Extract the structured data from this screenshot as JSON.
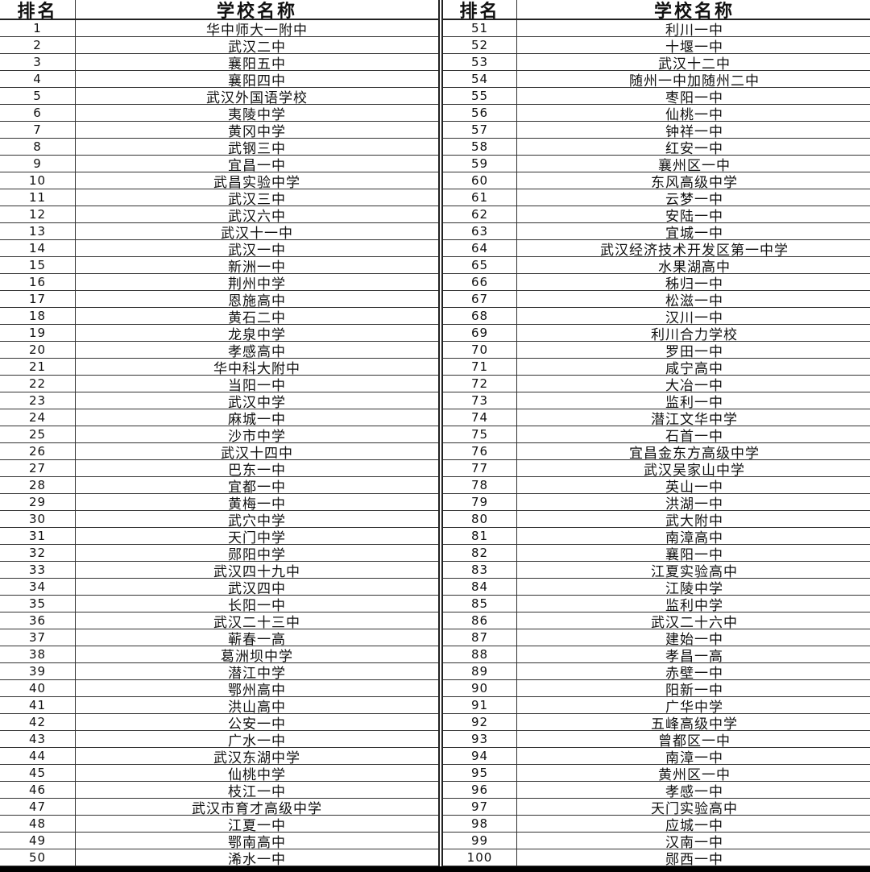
{
  "header": {
    "rank": "排名",
    "name": "学校名称"
  },
  "left": [
    {
      "rank": "1",
      "name": "华中师大一附中"
    },
    {
      "rank": "2",
      "name": "武汉二中"
    },
    {
      "rank": "3",
      "name": "襄阳五中"
    },
    {
      "rank": "4",
      "name": "襄阳四中"
    },
    {
      "rank": "5",
      "name": "武汉外国语学校"
    },
    {
      "rank": "6",
      "name": "夷陵中学"
    },
    {
      "rank": "7",
      "name": "黄冈中学"
    },
    {
      "rank": "8",
      "name": "武钢三中"
    },
    {
      "rank": "9",
      "name": "宜昌一中"
    },
    {
      "rank": "10",
      "name": "武昌实验中学"
    },
    {
      "rank": "11",
      "name": "武汉三中"
    },
    {
      "rank": "12",
      "name": "武汉六中"
    },
    {
      "rank": "13",
      "name": "武汉十一中"
    },
    {
      "rank": "14",
      "name": "武汉一中"
    },
    {
      "rank": "15",
      "name": "新洲一中"
    },
    {
      "rank": "16",
      "name": "荆州中学"
    },
    {
      "rank": "17",
      "name": "恩施高中"
    },
    {
      "rank": "18",
      "name": "黄石二中"
    },
    {
      "rank": "19",
      "name": "龙泉中学"
    },
    {
      "rank": "20",
      "name": "孝感高中"
    },
    {
      "rank": "21",
      "name": "华中科大附中"
    },
    {
      "rank": "22",
      "name": "当阳一中"
    },
    {
      "rank": "23",
      "name": "武汉中学"
    },
    {
      "rank": "24",
      "name": "麻城一中"
    },
    {
      "rank": "25",
      "name": "沙市中学"
    },
    {
      "rank": "26",
      "name": "武汉十四中"
    },
    {
      "rank": "27",
      "name": "巴东一中"
    },
    {
      "rank": "28",
      "name": "宜都一中"
    },
    {
      "rank": "29",
      "name": "黄梅一中"
    },
    {
      "rank": "30",
      "name": "武穴中学"
    },
    {
      "rank": "31",
      "name": "天门中学"
    },
    {
      "rank": "32",
      "name": "郧阳中学"
    },
    {
      "rank": "33",
      "name": "武汉四十九中"
    },
    {
      "rank": "34",
      "name": "武汉四中"
    },
    {
      "rank": "35",
      "name": "长阳一中"
    },
    {
      "rank": "36",
      "name": "武汉二十三中"
    },
    {
      "rank": "37",
      "name": "蕲春一高"
    },
    {
      "rank": "38",
      "name": "葛洲坝中学"
    },
    {
      "rank": "39",
      "name": "潜江中学"
    },
    {
      "rank": "40",
      "name": "鄂州高中"
    },
    {
      "rank": "41",
      "name": "洪山高中"
    },
    {
      "rank": "42",
      "name": "公安一中"
    },
    {
      "rank": "43",
      "name": "广水一中"
    },
    {
      "rank": "44",
      "name": "武汉东湖中学"
    },
    {
      "rank": "45",
      "name": "仙桃中学"
    },
    {
      "rank": "46",
      "name": "枝江一中"
    },
    {
      "rank": "47",
      "name": "武汉市育才高级中学"
    },
    {
      "rank": "48",
      "name": "江夏一中"
    },
    {
      "rank": "49",
      "name": "鄂南高中"
    },
    {
      "rank": "50",
      "name": "浠水一中"
    }
  ],
  "right": [
    {
      "rank": "51",
      "name": "利川一中"
    },
    {
      "rank": "52",
      "name": "十堰一中"
    },
    {
      "rank": "53",
      "name": "武汉十二中"
    },
    {
      "rank": "54",
      "name": "随州一中加随州二中"
    },
    {
      "rank": "55",
      "name": "枣阳一中"
    },
    {
      "rank": "56",
      "name": "仙桃一中"
    },
    {
      "rank": "57",
      "name": "钟祥一中"
    },
    {
      "rank": "58",
      "name": "红安一中"
    },
    {
      "rank": "59",
      "name": "襄州区一中"
    },
    {
      "rank": "60",
      "name": "东风高级中学"
    },
    {
      "rank": "61",
      "name": "云梦一中"
    },
    {
      "rank": "62",
      "name": "安陆一中"
    },
    {
      "rank": "63",
      "name": "宜城一中"
    },
    {
      "rank": "64",
      "name": "武汉经济技术开发区第一中学"
    },
    {
      "rank": "65",
      "name": "水果湖高中"
    },
    {
      "rank": "66",
      "name": "秭归一中"
    },
    {
      "rank": "67",
      "name": "松滋一中"
    },
    {
      "rank": "68",
      "name": "汉川一中"
    },
    {
      "rank": "69",
      "name": "利川合力学校"
    },
    {
      "rank": "70",
      "name": "罗田一中"
    },
    {
      "rank": "71",
      "name": "咸宁高中"
    },
    {
      "rank": "72",
      "name": "大冶一中"
    },
    {
      "rank": "73",
      "name": "监利一中"
    },
    {
      "rank": "74",
      "name": "潜江文华中学"
    },
    {
      "rank": "75",
      "name": "石首一中"
    },
    {
      "rank": "76",
      "name": "宜昌金东方高级中学"
    },
    {
      "rank": "77",
      "name": "武汉吴家山中学"
    },
    {
      "rank": "78",
      "name": "英山一中"
    },
    {
      "rank": "79",
      "name": "洪湖一中"
    },
    {
      "rank": "80",
      "name": "武大附中"
    },
    {
      "rank": "81",
      "name": "南漳高中"
    },
    {
      "rank": "82",
      "name": "襄阳一中"
    },
    {
      "rank": "83",
      "name": "江夏实验高中"
    },
    {
      "rank": "84",
      "name": "江陵中学"
    },
    {
      "rank": "85",
      "name": "监利中学"
    },
    {
      "rank": "86",
      "name": "武汉二十六中"
    },
    {
      "rank": "87",
      "name": "建始一中"
    },
    {
      "rank": "88",
      "name": "孝昌一高"
    },
    {
      "rank": "89",
      "name": "赤壁一中"
    },
    {
      "rank": "90",
      "name": "阳新一中"
    },
    {
      "rank": "91",
      "name": "广华中学"
    },
    {
      "rank": "92",
      "name": "五峰高级中学"
    },
    {
      "rank": "93",
      "name": "曾都区一中"
    },
    {
      "rank": "94",
      "name": "南漳一中"
    },
    {
      "rank": "95",
      "name": "黄州区一中"
    },
    {
      "rank": "96",
      "name": "孝感一中"
    },
    {
      "rank": "97",
      "name": "天门实验高中"
    },
    {
      "rank": "98",
      "name": "应城一中"
    },
    {
      "rank": "99",
      "name": "汉南一中"
    },
    {
      "rank": "100",
      "name": "郧西一中"
    }
  ]
}
